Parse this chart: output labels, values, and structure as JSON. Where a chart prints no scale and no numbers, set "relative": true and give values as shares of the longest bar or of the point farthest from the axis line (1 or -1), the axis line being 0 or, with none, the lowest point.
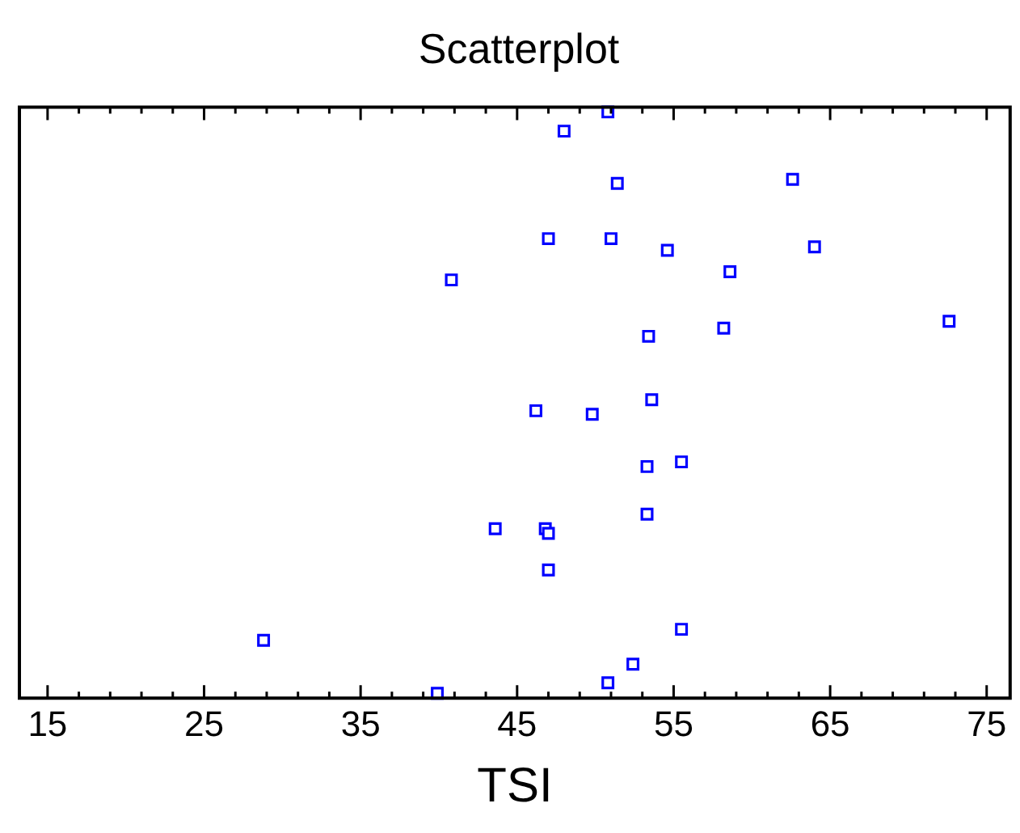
{
  "chart_data": {
    "type": "scatter",
    "title": "Scatterplot",
    "xlabel": "TSI",
    "relative": true,
    "marker": "square",
    "grid": false,
    "legend": false,
    "xlim": [
      13.2,
      76.5
    ],
    "xticks": [
      15,
      {
        "value": 17,
        "label": null
      },
      {
        "value": 19,
        "label": null
      },
      {
        "value": 21,
        "label": null
      },
      {
        "value": 23,
        "label": null
      },
      25,
      {
        "value": 27,
        "label": null
      },
      {
        "value": 29,
        "label": null
      },
      {
        "value": 31,
        "label": null
      },
      {
        "value": 33,
        "label": null
      },
      35,
      {
        "value": 37,
        "label": null
      },
      {
        "value": 39,
        "label": null
      },
      {
        "value": 41,
        "label": null
      },
      {
        "value": 43,
        "label": null
      },
      45,
      {
        "value": 47,
        "label": null
      },
      {
        "value": 49,
        "label": null
      },
      {
        "value": 51,
        "label": null
      },
      {
        "value": 53,
        "label": null
      },
      55,
      {
        "value": 57,
        "label": null
      },
      {
        "value": 59,
        "label": null
      },
      {
        "value": 61,
        "label": null
      },
      {
        "value": 63,
        "label": null
      },
      65,
      {
        "value": 67,
        "label": null
      },
      {
        "value": 69,
        "label": null
      },
      {
        "value": 71,
        "label": null
      },
      {
        "value": 73,
        "label": null
      },
      75
    ],
    "series": [
      {
        "color": "#0000ff",
        "x": [
          50.8,
          48.0,
          51.4,
          62.6,
          47.0,
          51.0,
          54.6,
          64.0,
          58.6,
          53.4,
          58.2,
          72.6,
          53.6,
          46.2,
          49.8,
          53.3,
          55.5,
          43.6,
          46.8,
          47.0,
          53.3,
          47.0,
          55.5,
          52.4,
          50.8,
          28.8,
          39.9,
          40.8
        ],
        "values": [
          1.0,
          0.967,
          0.877,
          0.884,
          0.782,
          0.782,
          0.762,
          0.768,
          0.725,
          0.614,
          0.628,
          0.64,
          0.505,
          0.486,
          0.48,
          0.39,
          0.398,
          0.283,
          0.283,
          0.275,
          0.308,
          0.212,
          0.11,
          0.05,
          0.018,
          0.091,
          0,
          0.711
        ]
      }
    ]
  }
}
